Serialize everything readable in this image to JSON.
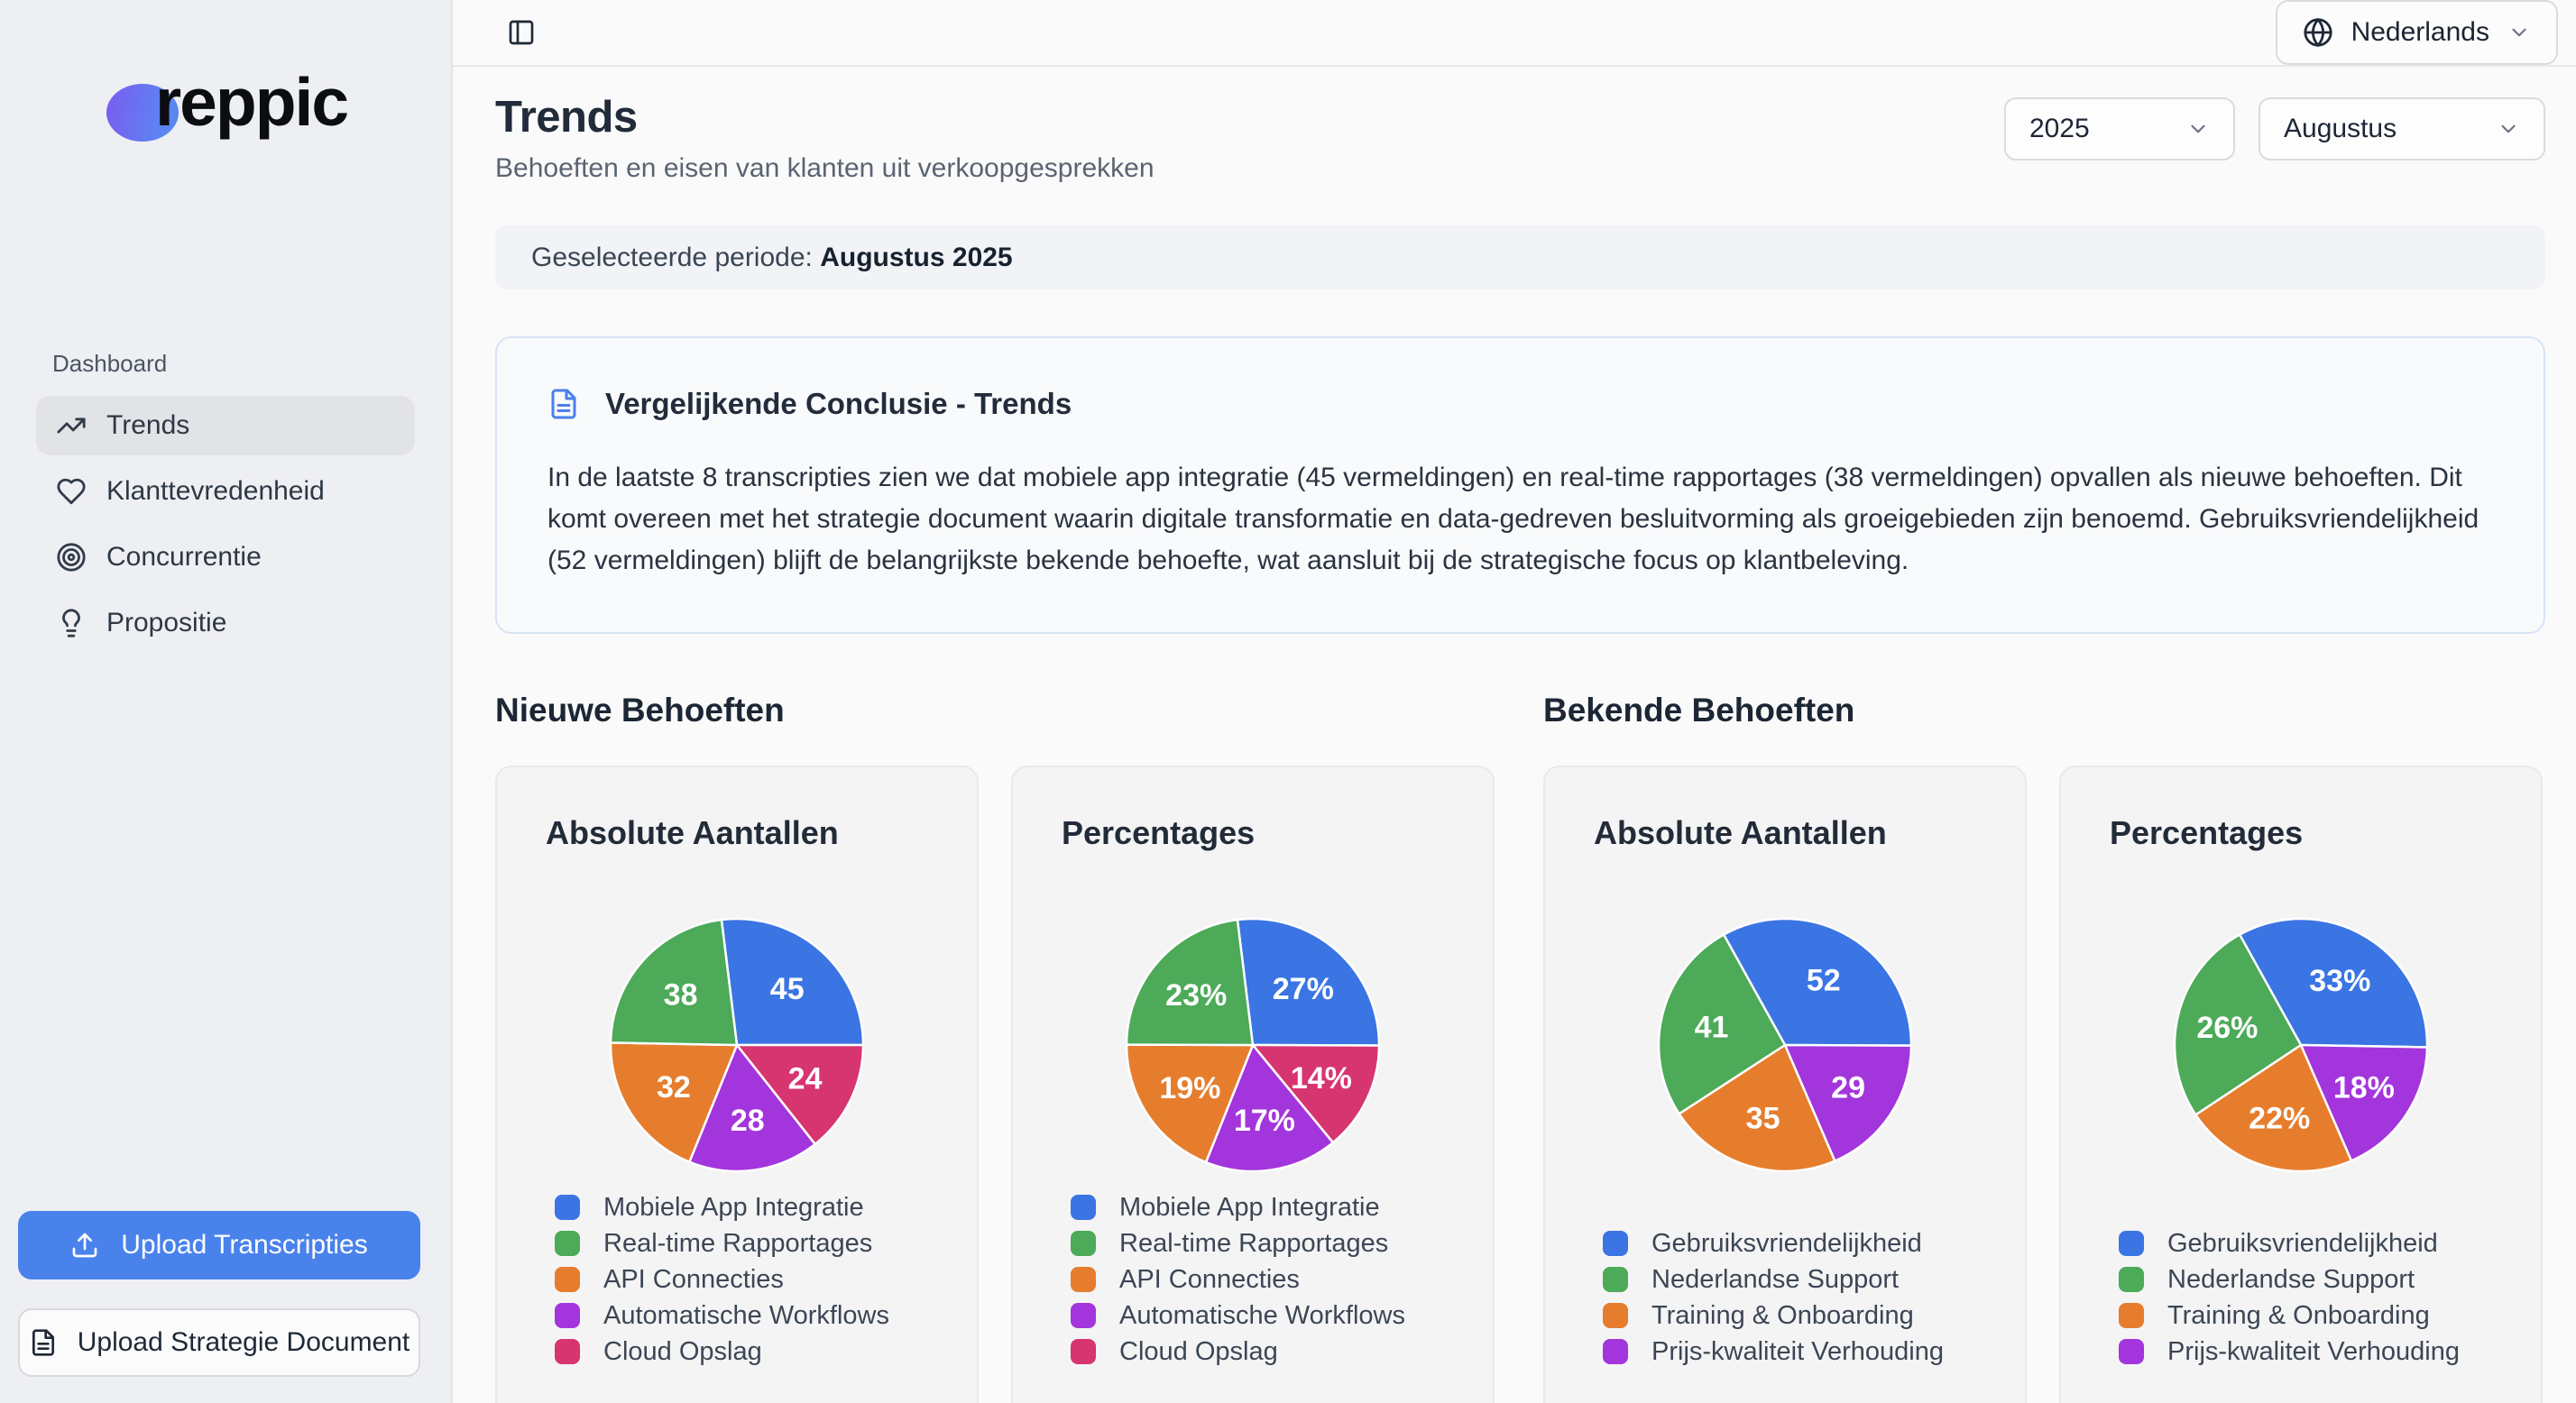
{
  "sidebar": {
    "logo_text": "reppic",
    "section_label": "Dashboard",
    "nav": [
      {
        "label": "Trends",
        "active": true
      },
      {
        "label": "Klanttevredenheid",
        "active": false
      },
      {
        "label": "Concurrentie",
        "active": false
      },
      {
        "label": "Propositie",
        "active": false
      }
    ],
    "upload_transcripts_label": "Upload Transcripties",
    "upload_strategy_label": "Upload Strategie Document"
  },
  "topbar": {
    "language": "Nederlands"
  },
  "page": {
    "title": "Trends",
    "subtitle": "Behoeften en eisen van klanten uit verkoopgesprekken",
    "year": "2025",
    "month": "Augustus",
    "period_label": "Geselecteerde periode:",
    "period_value": "Augustus 2025"
  },
  "conclusion": {
    "title": "Vergelijkende Conclusie - Trends",
    "body": "In de laatste 8 transcripties zien we dat mobiele app integratie (45 vermeldingen) en real-time rapportages (38 vermeldingen) opvallen als nieuwe behoeften. Dit komt overeen met het strategie document waarin digitale transformatie en data-gedreven besluitvorming als groeigebieden zijn benoemd. Gebruiksvriendelijkheid (52 vermeldingen) blijft de belangrijkste bekende behoefte, wat aansluit bij de strategische focus op klantbeleving."
  },
  "sections": [
    {
      "heading": "Nieuwe Behoeften",
      "chart_indices": [
        0,
        1
      ]
    },
    {
      "heading": "Bekende Behoeften",
      "chart_indices": [
        2,
        3
      ]
    }
  ],
  "colors": {
    "blue": "#3b75e3",
    "green": "#4caa58",
    "orange": "#e67d2d",
    "purple": "#a335dd",
    "pink": "#d63570",
    "accent_button": "#4a82ec"
  },
  "chart_data": [
    {
      "type": "pie",
      "title": "Absolute Aantallen",
      "labels": [
        "Mobiele App Integratie",
        "Real-time Rapportages",
        "API Connecties",
        "Automatische Workflows",
        "Cloud Opslag"
      ],
      "values": [
        45,
        38,
        32,
        28,
        24
      ],
      "slice_labels": [
        "45",
        "38",
        "32",
        "28",
        "24"
      ],
      "colors": [
        "#3b75e3",
        "#4caa58",
        "#e67d2d",
        "#a335dd",
        "#d63570"
      ],
      "legend_position": "bottom",
      "start_angle": -7
    },
    {
      "type": "pie",
      "title": "Percentages",
      "labels": [
        "Mobiele App Integratie",
        "Real-time Rapportages",
        "API Connecties",
        "Automatische Workflows",
        "Cloud Opslag"
      ],
      "values": [
        27,
        23,
        19,
        17,
        14
      ],
      "slice_labels": [
        "27%",
        "23%",
        "19%",
        "17%",
        "14%"
      ],
      "colors": [
        "#3b75e3",
        "#4caa58",
        "#e67d2d",
        "#a335dd",
        "#d63570"
      ],
      "legend_position": "bottom",
      "start_angle": -7
    },
    {
      "type": "pie",
      "title": "Absolute Aantallen",
      "labels": [
        "Gebruiksvriendelijkheid",
        "Nederlandse Support",
        "Training & Onboarding",
        "Prijs-kwaliteit Verhouding"
      ],
      "values": [
        52,
        41,
        35,
        29
      ],
      "slice_labels": [
        "52",
        "41",
        "35",
        "29"
      ],
      "colors": [
        "#3b75e3",
        "#4caa58",
        "#e67d2d",
        "#a335dd"
      ],
      "legend_position": "bottom",
      "start_angle": -29
    },
    {
      "type": "pie",
      "title": "Percentages",
      "labels": [
        "Gebruiksvriendelijkheid",
        "Nederlandse Support",
        "Training & Onboarding",
        "Prijs-kwaliteit Verhouding"
      ],
      "values": [
        33,
        26,
        22,
        18
      ],
      "slice_labels": [
        "33%",
        "26%",
        "22%",
        "18%"
      ],
      "colors": [
        "#3b75e3",
        "#4caa58",
        "#e67d2d",
        "#a335dd"
      ],
      "legend_position": "bottom",
      "start_angle": -29
    }
  ]
}
